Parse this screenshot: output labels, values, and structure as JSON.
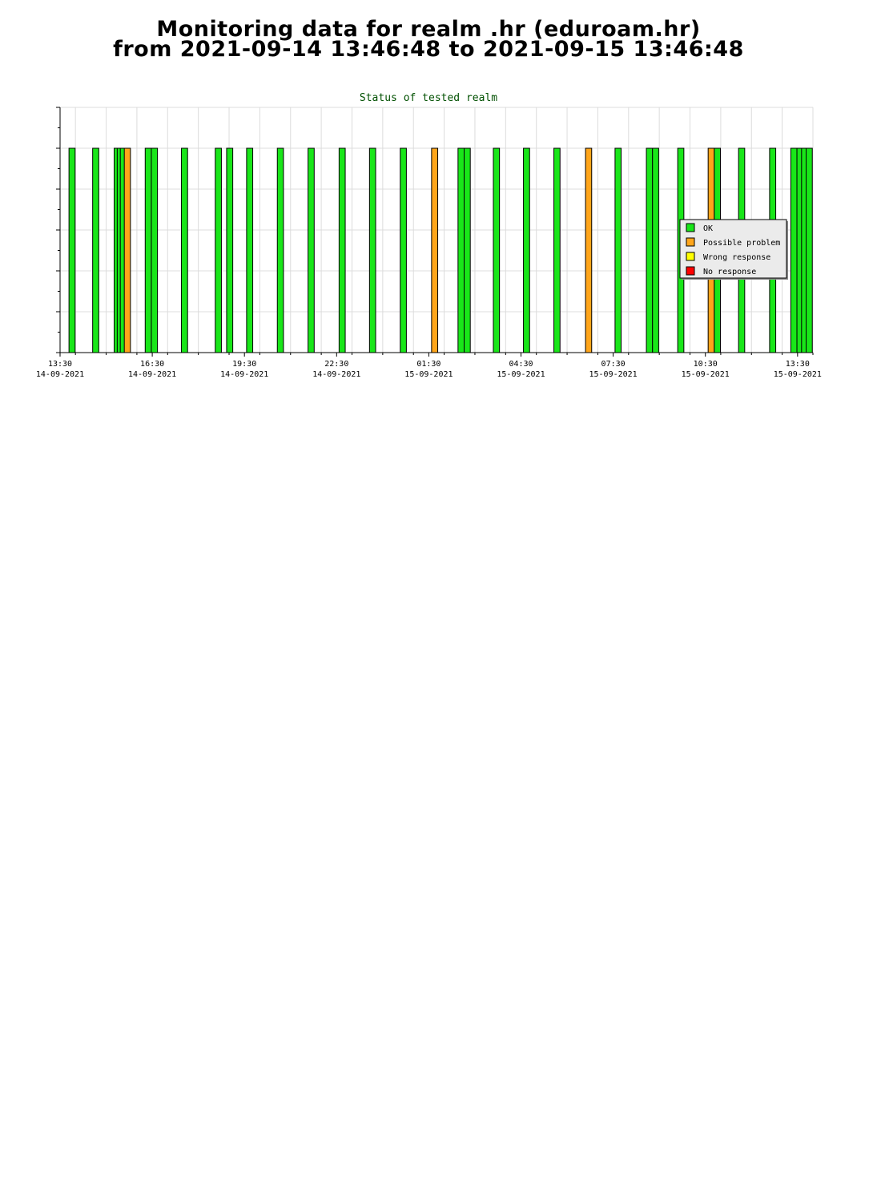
{
  "page": {
    "title_line1": "Monitoring data for realm .hr  (eduroam.hr)",
    "title_line2": "from 2021-09-14 13:46:48 to 2021-09-15 13:46:48"
  },
  "colors": {
    "ok": "#19e619",
    "possible_problem": "#ffa51a",
    "wrong_response": "#ffff00",
    "no_response": "#ff0000",
    "title_text": "#005000",
    "grid": "#dcdcdc",
    "legend_bg": "#ebebeb"
  },
  "chart_data": {
    "type": "bar",
    "title": "Status of tested realm",
    "xlabel": "",
    "ylabel": "",
    "grid": true,
    "legend_position": "right",
    "legend": [
      {
        "key": "ok",
        "label": "OK"
      },
      {
        "key": "possible_problem",
        "label": "Possible problem"
      },
      {
        "key": "wrong_response",
        "label": "Wrong response"
      },
      {
        "key": "no_response",
        "label": "No response"
      }
    ],
    "x_range_hours": [
      13.5,
      38.0
    ],
    "ylim": [
      0,
      6
    ],
    "bar_width_hours": 0.2,
    "x_ticks": [
      {
        "hour": 13.5,
        "time": "13:30",
        "date": "14-09-2021"
      },
      {
        "hour": 16.5,
        "time": "16:30",
        "date": "14-09-2021"
      },
      {
        "hour": 19.5,
        "time": "19:30",
        "date": "14-09-2021"
      },
      {
        "hour": 22.5,
        "time": "22:30",
        "date": "14-09-2021"
      },
      {
        "hour": 25.5,
        "time": "01:30",
        "date": "15-09-2021"
      },
      {
        "hour": 28.5,
        "time": "04:30",
        "date": "15-09-2021"
      },
      {
        "hour": 31.5,
        "time": "07:30",
        "date": "15-09-2021"
      },
      {
        "hour": 34.5,
        "time": "10:30",
        "date": "15-09-2021"
      },
      {
        "hour": 37.5,
        "time": "13:30",
        "date": "15-09-2021"
      }
    ],
    "bars": [
      {
        "hour": 13.79,
        "value": 5,
        "status": "ok"
      },
      {
        "hour": 14.56,
        "value": 5,
        "status": "ok"
      },
      {
        "hour": 15.26,
        "value": 5,
        "status": "ok"
      },
      {
        "hour": 15.36,
        "value": 5,
        "status": "ok"
      },
      {
        "hour": 15.46,
        "value": 5,
        "status": "ok"
      },
      {
        "hour": 15.59,
        "value": 5,
        "status": "possible_problem"
      },
      {
        "hour": 16.27,
        "value": 5,
        "status": "ok"
      },
      {
        "hour": 16.47,
        "value": 5,
        "status": "ok"
      },
      {
        "hour": 17.45,
        "value": 5,
        "status": "ok"
      },
      {
        "hour": 18.55,
        "value": 5,
        "status": "ok"
      },
      {
        "hour": 18.92,
        "value": 5,
        "status": "ok"
      },
      {
        "hour": 19.57,
        "value": 5,
        "status": "ok"
      },
      {
        "hour": 20.57,
        "value": 5,
        "status": "ok"
      },
      {
        "hour": 21.57,
        "value": 5,
        "status": "ok"
      },
      {
        "hour": 22.58,
        "value": 5,
        "status": "ok"
      },
      {
        "hour": 23.57,
        "value": 5,
        "status": "ok"
      },
      {
        "hour": 24.57,
        "value": 5,
        "status": "ok"
      },
      {
        "hour": 25.59,
        "value": 5,
        "status": "possible_problem"
      },
      {
        "hour": 26.45,
        "value": 5,
        "status": "ok"
      },
      {
        "hour": 26.65,
        "value": 5,
        "status": "ok"
      },
      {
        "hour": 27.6,
        "value": 5,
        "status": "ok"
      },
      {
        "hour": 28.58,
        "value": 5,
        "status": "ok"
      },
      {
        "hour": 29.57,
        "value": 5,
        "status": "ok"
      },
      {
        "hour": 30.6,
        "value": 5,
        "status": "possible_problem"
      },
      {
        "hour": 31.56,
        "value": 5,
        "status": "ok"
      },
      {
        "hour": 32.58,
        "value": 5,
        "status": "ok"
      },
      {
        "hour": 32.78,
        "value": 5,
        "status": "ok"
      },
      {
        "hour": 33.6,
        "value": 5,
        "status": "ok"
      },
      {
        "hour": 34.59,
        "value": 5,
        "status": "possible_problem"
      },
      {
        "hour": 34.79,
        "value": 5,
        "status": "ok"
      },
      {
        "hour": 35.58,
        "value": 5,
        "status": "ok"
      },
      {
        "hour": 36.59,
        "value": 5,
        "status": "ok"
      },
      {
        "hour": 37.28,
        "value": 5,
        "status": "ok"
      },
      {
        "hour": 37.48,
        "value": 5,
        "status": "ok"
      },
      {
        "hour": 37.63,
        "value": 5,
        "status": "ok"
      },
      {
        "hour": 37.78,
        "value": 5,
        "status": "ok"
      }
    ]
  }
}
